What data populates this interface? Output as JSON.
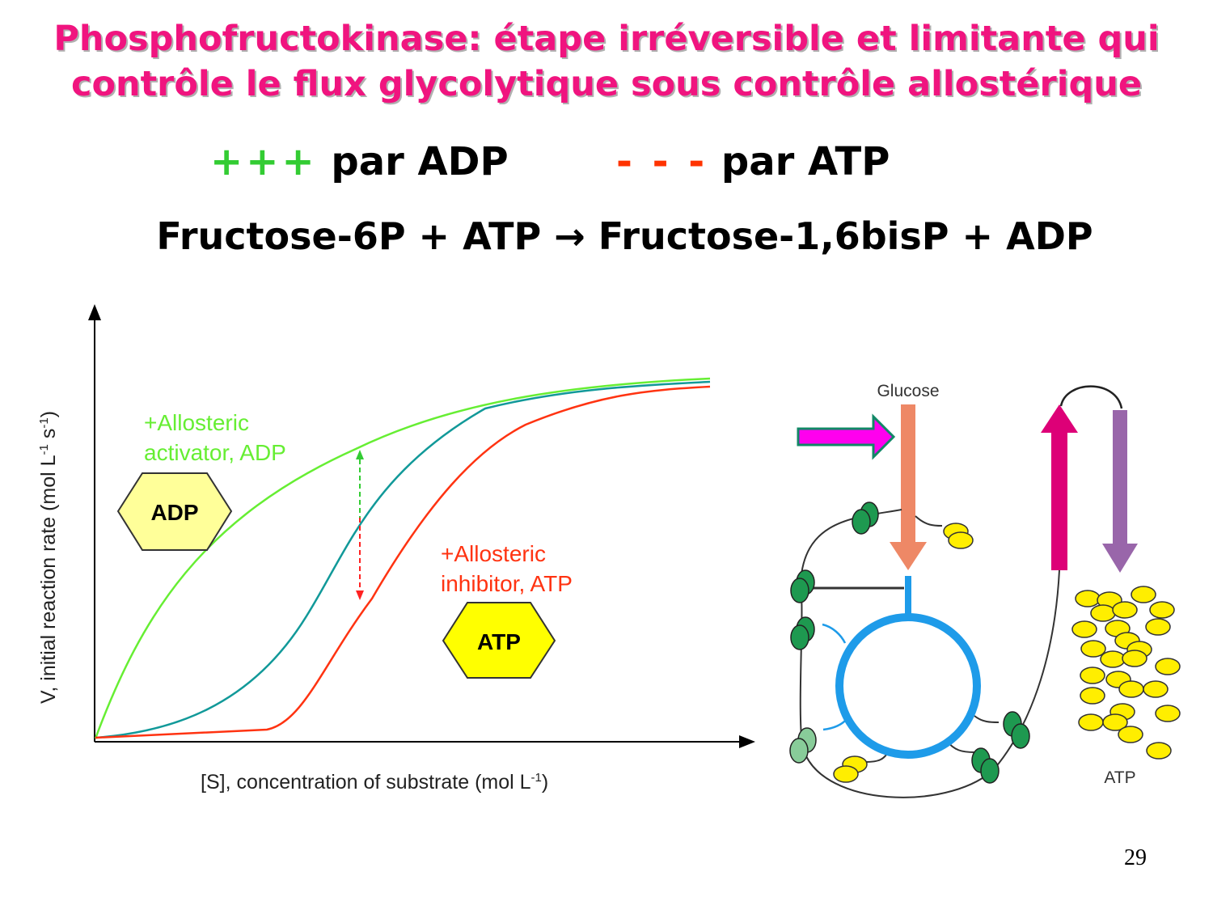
{
  "title": {
    "line1": "Phosphofructokinase: étape irréversible et limitante qui",
    "line2": "contrôle le flux glycolytique sous contrôle allostérique"
  },
  "legend": {
    "activation_symbol": "+++",
    "activation_text": "par ADP",
    "inhibition_symbol": "- - -",
    "inhibition_text": "par ATP",
    "activation_color": "#33CC33",
    "inhibition_color": "#FF3300"
  },
  "equation": "Fructose-6P + ATP → Fructose-1,6bisP + ADP",
  "graph": {
    "y_label": "V, initial reaction rate (mol L",
    "y_label_sup1": "-1",
    "y_label_mid": " s",
    "y_label_sup2": "-1",
    "y_label_end": ")",
    "x_label": "[S], concentration of substrate (mol L",
    "x_label_sup": "-1",
    "x_label_end": ")",
    "activator_line1": "+Allosteric",
    "activator_line2": "activator, ADP",
    "inhibitor_line1": "+Allosteric",
    "inhibitor_line2": "inhibitor, ATP",
    "adp_hexagon": "ADP",
    "atp_hexagon": "ATP",
    "colors": {
      "activated": "#66EE33",
      "normal": "#119999",
      "inhibited": "#FF3311"
    }
  },
  "cell_diagram": {
    "glucose_label": "Glucose",
    "atp_label": "ATP"
  },
  "page_number": "29"
}
